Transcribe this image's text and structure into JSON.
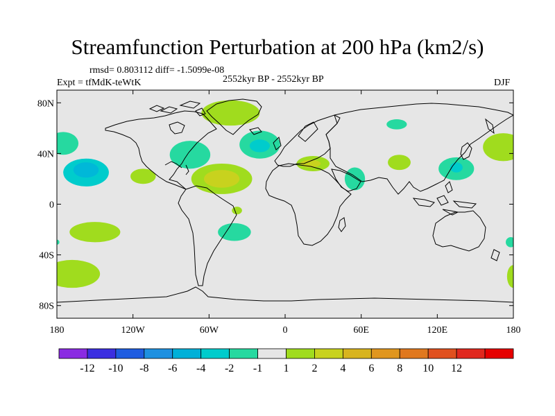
{
  "figure": {
    "title": "Streamfunction Perturbation at 200 hPa (km2/s)",
    "rmsd_line": "rmsd= 0.803112 diff= -1.5099e-08",
    "experiment": "Expt = tfMdK-teWtK",
    "period": "2552kyr BP - 2552kyr BP",
    "season": "DJF"
  },
  "map": {
    "projection": "cylindrical equidistant",
    "lon_range": [
      -180,
      180
    ],
    "lat_range": [
      -90,
      90
    ],
    "ocean_color": "#e6e6e6",
    "coastline_color": "#000000",
    "lat_ticks": [
      {
        "lat": 80,
        "label": "80N"
      },
      {
        "lat": 40,
        "label": "40N"
      },
      {
        "lat": 0,
        "label": "0"
      },
      {
        "lat": -40,
        "label": "40S"
      },
      {
        "lat": -80,
        "label": "80S"
      }
    ],
    "lon_ticks": [
      {
        "lon": -180,
        "label": "180"
      },
      {
        "lon": -120,
        "label": "120W"
      },
      {
        "lon": -60,
        "label": "60W"
      },
      {
        "lon": 0,
        "label": "0"
      },
      {
        "lon": 60,
        "label": "60E"
      },
      {
        "lon": 120,
        "label": "120E"
      },
      {
        "lon": 180,
        "label": "180"
      }
    ]
  },
  "colorbar": {
    "colors": [
      "#8a2be2",
      "#3b2ee0",
      "#1e5ce0",
      "#1e90e0",
      "#00b0d8",
      "#00cccc",
      "#26d9a0",
      "#e6e6e6",
      "#a0dc1e",
      "#c8d21e",
      "#d8b41e",
      "#e0961e",
      "#e0781e",
      "#e0501e",
      "#e0281e",
      "#e60000"
    ],
    "labels": [
      "-12",
      "-10",
      "-8",
      "-6",
      "-4",
      "-2",
      "-1",
      "1",
      "2",
      "4",
      "6",
      "8",
      "10",
      "12"
    ]
  },
  "anomalies": [
    {
      "name": "north-pacific-low",
      "lon": -157,
      "lat": 25,
      "rlon": 18,
      "rlat": 11,
      "level": -4
    },
    {
      "name": "north-pacific-low-core",
      "lon": -157,
      "lat": 27,
      "rlon": 10,
      "rlat": 6,
      "level": -6
    },
    {
      "name": "northwest-pacific-low",
      "lon": -175,
      "lat": 48,
      "rlon": 12,
      "rlat": 9,
      "level": -2
    },
    {
      "name": "eastern-pacific-high",
      "lon": -112,
      "lat": 22,
      "rlon": 10,
      "rlat": 6,
      "level": 2
    },
    {
      "name": "north-america-low",
      "lon": -75,
      "lat": 39,
      "rlon": 16,
      "rlat": 11,
      "level": -2
    },
    {
      "name": "greenland-high",
      "lon": -43,
      "lat": 72,
      "rlon": 23,
      "rlat": 10,
      "level": 2
    },
    {
      "name": "north-atlantic-low",
      "lon": -20,
      "lat": 47,
      "rlon": 16,
      "rlat": 11,
      "level": -2
    },
    {
      "name": "north-atlantic-low-core",
      "lon": -20,
      "lat": 46,
      "rlon": 8,
      "rlat": 5,
      "level": -4
    },
    {
      "name": "atlantic-high",
      "lon": -50,
      "lat": 20,
      "rlon": 24,
      "rlat": 12,
      "level": 2
    },
    {
      "name": "atlantic-high-core",
      "lon": -50,
      "lat": 20,
      "rlon": 14,
      "rlat": 7,
      "level": 4
    },
    {
      "name": "mediterranean-high",
      "lon": 22,
      "lat": 32,
      "rlon": 13,
      "rlat": 6,
      "level": 2
    },
    {
      "name": "mediterranean-high-core",
      "lon": 20,
      "lat": 32,
      "rlon": 8,
      "rlat": 3,
      "level": 4
    },
    {
      "name": "arabia-low",
      "lon": 55,
      "lat": 20,
      "rlon": 8,
      "rlat": 9,
      "level": -2
    },
    {
      "name": "siberia-low",
      "lon": 88,
      "lat": 63,
      "rlon": 8,
      "rlat": 4,
      "level": -2
    },
    {
      "name": "india-high",
      "lon": 90,
      "lat": 33,
      "rlon": 9,
      "rlat": 6,
      "level": 2
    },
    {
      "name": "east-asia-low",
      "lon": 135,
      "lat": 28,
      "rlon": 14,
      "rlat": 9,
      "level": -2
    },
    {
      "name": "east-asia-low-core",
      "lon": 135,
      "lat": 29,
      "rlon": 5,
      "rlat": 4,
      "level": -4
    },
    {
      "name": "north-pacific-high",
      "lon": 172,
      "lat": 45,
      "rlon": 16,
      "rlat": 11,
      "level": 2
    },
    {
      "name": "south-atlantic-high",
      "lon": -38,
      "lat": -5,
      "rlon": 4,
      "rlat": 3,
      "level": 2
    },
    {
      "name": "south-atlantic-low",
      "lon": -40,
      "lat": -22,
      "rlon": 13,
      "rlat": 7,
      "level": -2
    },
    {
      "name": "south-pacific-high",
      "lon": -150,
      "lat": -22,
      "rlon": 20,
      "rlat": 8,
      "level": 2
    },
    {
      "name": "southern-ocean-high",
      "lon": -168,
      "lat": -55,
      "rlon": 22,
      "rlat": 11,
      "level": 2
    },
    {
      "name": "tasman-high",
      "lon": 180,
      "lat": -57,
      "rlon": 5,
      "rlat": 9,
      "level": 2
    },
    {
      "name": "tasman-low",
      "lon": 178,
      "lat": -30,
      "rlon": 4,
      "rlat": 4,
      "level": -2
    },
    {
      "name": "west-edge-low",
      "lon": -180,
      "lat": -30,
      "rlon": 2,
      "rlat": 2,
      "level": -2
    }
  ]
}
